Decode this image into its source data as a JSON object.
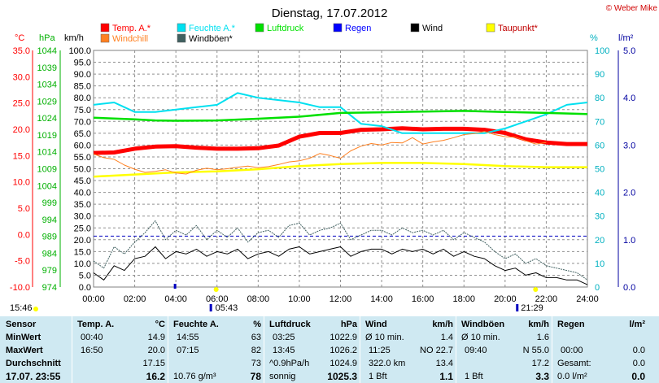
{
  "chart_data": {
    "type": "line",
    "title": "Dienstag, 17.07.2012",
    "credit": "© Weber Mike",
    "x_ticks": [
      "00:00",
      "02:00",
      "04:00",
      "06:00",
      "08:00",
      "10:00",
      "12:00",
      "14:00",
      "16:00",
      "18:00",
      "20:00",
      "22:00",
      "24:00"
    ],
    "axes": {
      "celsius": {
        "label": "°C",
        "color": "#ff0000",
        "range": [
          -10.0,
          35.0
        ],
        "ticks": [
          "35.0",
          "30.0",
          "25.0",
          "20.0",
          "15.0",
          "10.0",
          "5.0",
          "0.0",
          "-5.0",
          "-10.0"
        ]
      },
      "hpa": {
        "label": "hPa",
        "color": "#00b000",
        "range": [
          974,
          1044
        ],
        "ticks": [
          "1044",
          "1039",
          "1034",
          "1029",
          "1024",
          "1019",
          "1014",
          "1009",
          "1004",
          "999",
          "994",
          "989",
          "984",
          "979",
          "974"
        ]
      },
      "kmh": {
        "label": "km/h",
        "color": "#000000",
        "range": [
          0.0,
          100.0
        ],
        "ticks": [
          "100.0",
          "95.0",
          "90.0",
          "85.0",
          "80.0",
          "75.0",
          "70.0",
          "65.0",
          "60.0",
          "55.0",
          "50.0",
          "45.0",
          "40.0",
          "35.0",
          "30.0",
          "25.0",
          "20.0",
          "15.0",
          "10.0",
          "5.0",
          "0.0"
        ]
      },
      "percent": {
        "label": "%",
        "color": "#00b0c0",
        "range": [
          0,
          100
        ],
        "ticks": [
          "100",
          "90",
          "80",
          "70",
          "60",
          "50",
          "40",
          "30",
          "20",
          "10",
          "0"
        ]
      },
      "lm2": {
        "label": "l/m²",
        "color": "#0000a0",
        "range": [
          0.0,
          5.0
        ],
        "ticks": [
          "5.0",
          "4.0",
          "3.0",
          "2.0",
          "1.0",
          "0.0"
        ]
      }
    },
    "legend": [
      {
        "name": "Temp. A.*",
        "color": "#ff0000"
      },
      {
        "name": "Feuchte A.*",
        "color": "#00e0f0"
      },
      {
        "name": "Luftdruck",
        "color": "#00e000"
      },
      {
        "name": "Regen",
        "color": "#0000ff"
      },
      {
        "name": "Wind",
        "color": "#000000"
      },
      {
        "name": "Taupunkt*",
        "color": "#ffff00"
      },
      {
        "name": "Windchill",
        "color": "#ff8020"
      },
      {
        "name": "Windböen*",
        "color": "#406060"
      }
    ],
    "series": [
      {
        "name": "Temp. A.*",
        "axis": "celsius",
        "color": "#ff0000",
        "x": [
          0,
          1,
          2,
          3,
          4,
          5,
          6,
          7,
          8,
          9,
          10,
          11,
          12,
          13,
          14,
          15,
          16,
          17,
          18,
          19,
          20,
          21,
          22,
          23,
          24
        ],
        "y": [
          15.5,
          15.6,
          16.3,
          16.7,
          16.8,
          16.5,
          16.3,
          16.3,
          16.4,
          16.9,
          18.6,
          19.3,
          19.3,
          19.9,
          20.0,
          20.2,
          20.0,
          20.1,
          20.1,
          19.9,
          19.3,
          18.1,
          17.5,
          17.2,
          17.2
        ]
      },
      {
        "name": "Feuchte A.*",
        "axis": "percent",
        "color": "#00e0f0",
        "x": [
          0,
          1,
          2,
          3,
          4,
          5,
          6,
          7,
          8,
          9,
          10,
          11,
          12,
          13,
          14,
          15,
          16,
          17,
          18,
          19,
          20,
          21,
          22,
          23,
          24
        ],
        "y": [
          77,
          78,
          74,
          74,
          75,
          76,
          77,
          82,
          80,
          79,
          78,
          76,
          76,
          69,
          68,
          65,
          65,
          65,
          65,
          65,
          67,
          70,
          73,
          77,
          78
        ]
      },
      {
        "name": "Luftdruck",
        "axis": "hpa",
        "color": "#00e000",
        "x": [
          0,
          2,
          3,
          4,
          6,
          8,
          10,
          12,
          14,
          16,
          18,
          20,
          22,
          24
        ],
        "y": [
          1024.1,
          1023.6,
          1023.3,
          1023.2,
          1023.3,
          1023.8,
          1024.4,
          1025.5,
          1025.7,
          1025.9,
          1026.1,
          1025.8,
          1025.5,
          1025.2
        ]
      },
      {
        "name": "Taupunkt*",
        "axis": "celsius",
        "color": "#ffff00",
        "x": [
          0,
          2,
          4,
          6,
          8,
          10,
          12,
          14,
          16,
          18,
          20,
          22,
          24
        ],
        "y": [
          11.0,
          11.4,
          11.8,
          12.0,
          12.4,
          13.0,
          13.4,
          13.6,
          13.6,
          13.4,
          13.0,
          12.8,
          12.8
        ]
      },
      {
        "name": "Windchill",
        "axis": "celsius",
        "color": "#ff8020",
        "x": [
          0,
          0.5,
          1,
          1.5,
          2,
          2.5,
          3,
          3.5,
          4,
          4.5,
          5,
          5.5,
          6,
          6.5,
          7,
          7.5,
          8,
          8.5,
          9,
          9.5,
          10,
          10.5,
          11,
          11.5,
          12,
          12.5,
          13,
          13.5,
          14,
          14.5,
          15,
          15.5,
          16,
          16.5,
          17,
          17.5,
          18,
          18.5,
          19,
          19.5,
          20,
          20.5,
          21,
          21.5,
          22
        ],
        "y": [
          15.3,
          14.6,
          14.3,
          13.2,
          12.4,
          11.8,
          12.0,
          12.3,
          11.7,
          11.5,
          12.2,
          12.6,
          12.3,
          12.5,
          12.8,
          13.0,
          12.7,
          12.9,
          13.3,
          13.8,
          14.0,
          14.5,
          15.4,
          15.0,
          14.5,
          15.9,
          16.8,
          17.3,
          17.0,
          17.5,
          17.4,
          18.4,
          17.2,
          17.6,
          17.9,
          18.4,
          19.0,
          19.2,
          19.6,
          19.0,
          18.6,
          18.5,
          17.8,
          17.2,
          17.5
        ]
      },
      {
        "name": "Windböen*",
        "axis": "kmh",
        "color": "#406060",
        "x": [
          0,
          0.5,
          1,
          1.5,
          2,
          2.5,
          3,
          3.5,
          4,
          4.5,
          5,
          5.5,
          6,
          6.5,
          7,
          7.5,
          8,
          8.5,
          9,
          9.5,
          10,
          10.5,
          11,
          11.5,
          12,
          12.5,
          13,
          13.5,
          14,
          14.5,
          15,
          15.5,
          16,
          16.5,
          17,
          17.5,
          18,
          18.5,
          19,
          19.5,
          20,
          20.5,
          21,
          21.5,
          22,
          22.5,
          23,
          23.5,
          24
        ],
        "y": [
          11,
          8,
          17,
          14,
          19,
          23,
          28,
          20,
          24,
          22,
          26,
          20,
          24,
          21,
          25,
          19,
          23,
          24,
          21,
          26,
          27,
          22,
          24,
          25,
          27,
          20,
          22,
          24,
          24,
          22,
          25,
          23,
          24,
          22,
          24,
          20,
          23,
          21,
          19,
          15,
          12,
          14,
          10,
          12,
          9,
          8,
          7,
          6,
          3
        ]
      },
      {
        "name": "Wind",
        "axis": "kmh",
        "color": "#000000",
        "x": [
          0,
          0.5,
          1,
          1.5,
          2,
          2.5,
          3,
          3.5,
          4,
          4.5,
          5,
          5.5,
          6,
          6.5,
          7,
          7.5,
          8,
          8.5,
          9,
          9.5,
          10,
          10.5,
          11,
          11.5,
          12,
          12.5,
          13,
          13.5,
          14,
          14.5,
          15,
          15.5,
          16,
          16.5,
          17,
          17.5,
          18,
          18.5,
          19,
          19.5,
          20,
          20.5,
          21,
          21.5,
          22,
          22.5,
          23,
          23.5,
          24
        ],
        "y": [
          6,
          3,
          9,
          7,
          12,
          13,
          17,
          12,
          15,
          14,
          16,
          13,
          15,
          14,
          16,
          12,
          14,
          15,
          13,
          16,
          17,
          14,
          15,
          16,
          17,
          13,
          15,
          16,
          16,
          14,
          16,
          15,
          16,
          14,
          16,
          13,
          15,
          13,
          12,
          9,
          7,
          8,
          5,
          6,
          4,
          4,
          3,
          3,
          1
        ]
      }
    ],
    "markers": [
      {
        "label": "15:46",
        "kind": "left-time"
      },
      {
        "label": "05:43",
        "kind": "sunrise"
      },
      {
        "label": "21:29",
        "kind": "sunset"
      }
    ],
    "reference_line": {
      "axis": "kmh",
      "value": 21.5,
      "color": "#0000c0"
    },
    "grid": true
  },
  "table": {
    "sensor": {
      "header": "Sensor",
      "rows": [
        "MinWert",
        "MaxWert",
        "Durchschnitt"
      ],
      "total": "17.07. 23:55"
    },
    "temp": {
      "header": "Temp. A.",
      "unit": "°C",
      "rows": [
        [
          "00:40",
          "14.9"
        ],
        [
          "16:50",
          "20.0"
        ],
        [
          "",
          "17.15"
        ]
      ],
      "total": "16.2"
    },
    "feuchte": {
      "header": "Feuchte A.",
      "unit": "%",
      "rows": [
        [
          "14:55",
          "63"
        ],
        [
          "07:15",
          "82"
        ],
        [
          "",
          "73"
        ]
      ],
      "total_left": "10.76 g/m³",
      "total": "78"
    },
    "druck": {
      "header": "Luftdruck",
      "unit": "hPa",
      "rows": [
        [
          "03:25",
          "1022.9"
        ],
        [
          "13:45",
          "1026.2"
        ],
        [
          "^0.9hPa/h",
          "1024.9"
        ]
      ],
      "total_left": "sonnig",
      "total": "1025.3"
    },
    "wind": {
      "header": "Wind",
      "unit": "km/h",
      "rows": [
        [
          "Ø 10 min.",
          "1.4"
        ],
        [
          "11:25",
          "NO 22.7"
        ],
        [
          "322.0 km",
          "13.4"
        ]
      ],
      "total_left": "1 Bft",
      "total": "1.1"
    },
    "boeen": {
      "header": "Windböen",
      "unit": "km/h",
      "rows": [
        [
          "Ø 10 min.",
          "1.6"
        ],
        [
          "09:40",
          "N 55.0"
        ],
        [
          "",
          "17.2"
        ]
      ],
      "total_left": "1 Bft",
      "total": "3.3"
    },
    "regen": {
      "header": "Regen",
      "unit": "l/m²",
      "rows": [
        [
          "",
          ""
        ],
        [
          "00:00",
          "0.0"
        ],
        [
          "Gesamt:",
          "0.0"
        ]
      ],
      "total_left": "0.0 l/m²",
      "total": "0.0"
    }
  }
}
